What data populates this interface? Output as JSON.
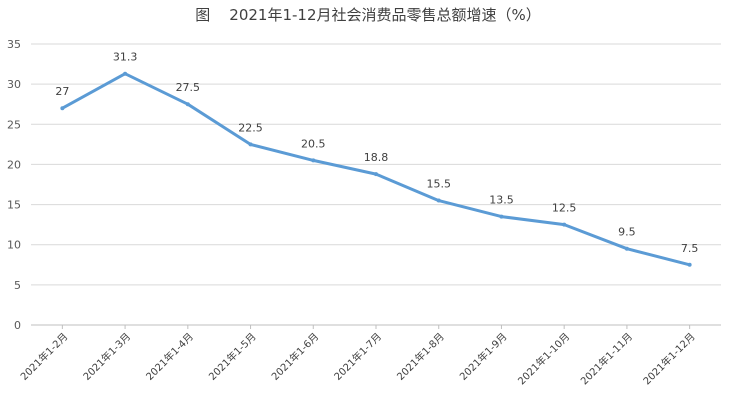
{
  "chart_data": {
    "type": "line",
    "title": "图    2021年1-12月社会消费品零售总额增速（%）",
    "categories": [
      "2021年1-2月",
      "2021年1-3月",
      "2021年1-4月",
      "2021年1-5月",
      "2021年1-6月",
      "2021年1-7月",
      "2021年1-8月",
      "2021年1-9月",
      "2021年1-10月",
      "2021年1-11月",
      "2021年1-12月"
    ],
    "series": [
      {
        "values": [
          27,
          31.3,
          27.5,
          22.5,
          20.5,
          18.8,
          15.5,
          13.5,
          12.5,
          9.5,
          7.5
        ]
      }
    ],
    "data_labels": [
      "27",
      "31.3",
      "27.5",
      "22.5",
      "20.5",
      "18.8",
      "15.5",
      "13.5",
      "12.5",
      "9.5",
      "7.5"
    ],
    "yticks": [
      "0",
      "5",
      "10",
      "15",
      "20",
      "25",
      "30",
      "35"
    ],
    "ylim": [
      0,
      35
    ],
    "grid": true,
    "line_color": "#5b9bd5"
  }
}
